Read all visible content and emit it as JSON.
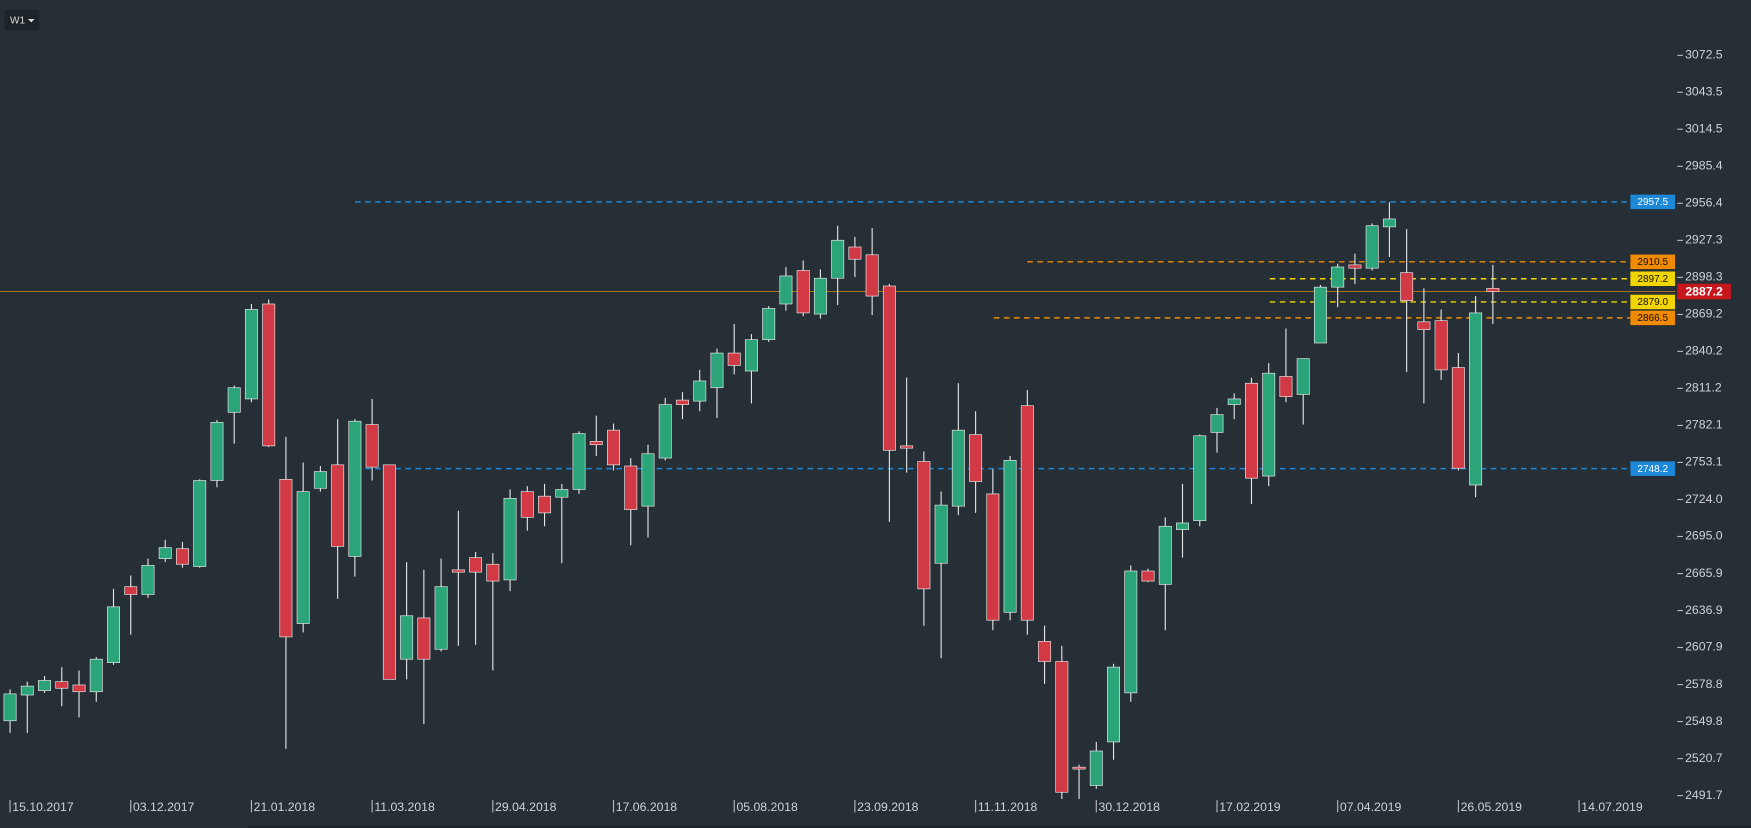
{
  "chart_data": {
    "type": "candlestick",
    "timeframe": "W1",
    "categories": [
      "15.10.2017",
      null,
      null,
      null,
      null,
      null,
      null,
      "03.12.2017",
      null,
      null,
      null,
      null,
      null,
      null,
      "21.01.2018",
      null,
      null,
      null,
      null,
      null,
      null,
      "11.03.2018",
      null,
      null,
      null,
      null,
      null,
      null,
      "29.04.2018",
      null,
      null,
      null,
      null,
      null,
      null,
      "17.06.2018",
      null,
      null,
      null,
      null,
      null,
      null,
      "05.08.2018",
      null,
      null,
      null,
      null,
      null,
      null,
      "23.09.2018",
      null,
      null,
      null,
      null,
      null,
      null,
      "11.11.2018",
      null,
      null,
      null,
      null,
      null,
      null,
      "30.12.2018",
      null,
      null,
      null,
      null,
      null,
      null,
      "17.02.2019",
      null,
      null,
      null,
      null,
      null,
      null,
      "07.04.2019",
      null,
      null,
      null,
      null,
      null,
      null,
      "26.05.2019",
      null,
      null,
      null,
      null,
      null,
      null,
      "14.07.2019"
    ],
    "open": [
      2550.4,
      2570.6,
      2574.1,
      2581.1,
      2578.5,
      2573.2,
      2596.0,
      2655.6,
      2649.5,
      2677.6,
      2685.4,
      2671.4,
      2738.9,
      2792.4,
      2802.9,
      2877.4,
      2739.8,
      2626.7,
      2732.8,
      2751.2,
      2679.3,
      2782.8,
      2751.2,
      2598.7,
      2631.1,
      2606.5,
      2668.8,
      2678.4,
      2673.2,
      2660.9,
      2730.2,
      2726.6,
      2725.8,
      2731.9,
      2769.6,
      2778.4,
      2750.3,
      2718.8,
      2756.5,
      2802.0,
      2801.2,
      2811.7,
      2838.9,
      2824.8,
      2849.4,
      2877.4,
      2903.7,
      2869.5,
      2897.6,
      2922.1,
      2916.0,
      2891.5,
      2766.1,
      2753.8,
      2674.0,
      2718.8,
      2774.9,
      2728.4,
      2635.5,
      2797.6,
      2612.7,
      2596.9,
      2514.0,
      2499.6,
      2533.8,
      2572.3,
      2667.9,
      2657.4,
      2700.4,
      2707.4,
      2776.6,
      2798.5,
      2815.2,
      2742.4,
      2820.5,
      2806.4,
      2846.8,
      2890.6,
      2908.1,
      2905.5,
      2937.9,
      2902.0,
      2863.4,
      2864.3,
      2827.5,
      2735.4,
      2889.7,
      null,
      null,
      null,
      null,
      null
    ],
    "high": [
      2575.0,
      2581.1,
      2585.5,
      2592.5,
      2589.9,
      2600.4,
      2653.9,
      2664.4,
      2677.6,
      2692.4,
      2690.7,
      2739.8,
      2786.3,
      2813.4,
      2877.4,
      2880.9,
      2773.1,
      2753.0,
      2750.3,
      2787.1,
      2787.1,
      2802.9,
      2751.2,
      2674.9,
      2668.8,
      2677.6,
      2715.2,
      2682.8,
      2681.9,
      2731.9,
      2734.5,
      2736.3,
      2736.3,
      2777.5,
      2789.8,
      2783.6,
      2756.5,
      2767.0,
      2803.8,
      2808.2,
      2825.7,
      2842.4,
      2861.7,
      2853.8,
      2875.7,
      2906.4,
      2911.6,
      2904.6,
      2938.8,
      2930.0,
      2937.0,
      2893.2,
      2819.6,
      2761.7,
      2730.2,
      2815.2,
      2793.3,
      2747.7,
      2758.2,
      2809.9,
      2625.0,
      2609.2,
      2516.0,
      2533.8,
      2595.1,
      2672.3,
      2669.7,
      2710.0,
      2736.3,
      2774.9,
      2795.9,
      2807.3,
      2819.6,
      2831.0,
      2858.2,
      2834.5,
      2892.3,
      2909.0,
      2916.9,
      2940.6,
      2957.2,
      2936.2,
      2889.7,
      2873.1,
      2838.9,
      2883.6,
      2908.1,
      null,
      null,
      null,
      null,
      null
    ],
    "low": [
      2540.8,
      2540.8,
      2572.3,
      2561.8,
      2553.0,
      2565.3,
      2594.3,
      2617.9,
      2646.9,
      2674.9,
      2670.5,
      2670.5,
      2733.6,
      2767.8,
      2800.3,
      2765.2,
      2528.5,
      2619.7,
      2730.2,
      2646.0,
      2663.5,
      2738.9,
      2582.9,
      2582.9,
      2547.8,
      2604.8,
      2609.2,
      2610.0,
      2589.9,
      2652.1,
      2699.5,
      2703.0,
      2674.0,
      2728.4,
      2758.2,
      2746.8,
      2688.1,
      2694.2,
      2754.7,
      2787.1,
      2793.3,
      2788.0,
      2822.2,
      2799.4,
      2847.6,
      2872.2,
      2867.8,
      2866.0,
      2876.6,
      2898.5,
      2868.7,
      2706.5,
      2745.1,
      2625.0,
      2599.5,
      2711.7,
      2713.5,
      2621.4,
      2629.3,
      2617.9,
      2579.4,
      2489.0,
      2489.0,
      2497.0,
      2519.8,
      2565.3,
      2659.2,
      2621.4,
      2678.4,
      2703.0,
      2760.8,
      2787.1,
      2720.5,
      2734.5,
      2800.3,
      2782.8,
      2846.8,
      2874.8,
      2893.2,
      2903.7,
      2914.3,
      2823.9,
      2799.4,
      2817.8,
      2746.8,
      2725.8,
      2861.7,
      null,
      null,
      null,
      null,
      null
    ],
    "close": [
      2571.5,
      2577.6,
      2582.0,
      2575.9,
      2573.2,
      2598.7,
      2639.8,
      2649.5,
      2672.3,
      2686.3,
      2673.2,
      2738.9,
      2784.5,
      2811.7,
      2873.1,
      2766.1,
      2616.2,
      2730.2,
      2745.9,
      2687.2,
      2785.4,
      2749.4,
      2582.9,
      2632.8,
      2598.7,
      2655.6,
      2667.0,
      2667.0,
      2660.0,
      2724.9,
      2710.0,
      2713.5,
      2731.9,
      2775.7,
      2767.0,
      2751.2,
      2716.1,
      2759.9,
      2798.5,
      2798.5,
      2817.0,
      2838.9,
      2829.2,
      2849.4,
      2873.9,
      2899.4,
      2870.4,
      2897.6,
      2927.4,
      2912.5,
      2883.6,
      2762.6,
      2764.3,
      2653.9,
      2719.6,
      2778.4,
      2738.1,
      2629.3,
      2754.7,
      2629.3,
      2596.9,
      2494.3,
      2512.5,
      2526.7,
      2592.5,
      2667.9,
      2660.0,
      2703.0,
      2705.6,
      2774.0,
      2790.6,
      2802.9,
      2740.7,
      2823.1,
      2804.7,
      2834.5,
      2890.6,
      2906.4,
      2905.5,
      2938.8,
      2944.1,
      2880.0,
      2857.3,
      2825.7,
      2748.6,
      2870.4,
      2887.2,
      null,
      null,
      null,
      null,
      null
    ],
    "up_color": "#2ba47a",
    "down_color": "#d13a45",
    "wick_color": "#e6e6e6",
    "ylim": [
      2491.7,
      3072.5
    ],
    "yticks": [
      2491.7,
      2520.7,
      2549.8,
      2578.8,
      2607.9,
      2636.9,
      {
        "value": 2665.9,
        "label": "2665.9"
      },
      {
        "value": 2695,
        "label": "2695.0"
      },
      {
        "value": 2724,
        "label": "2724.0"
      },
      2753.1,
      2782.1,
      2811.2,
      2840.2,
      2869.2,
      2898.3,
      2927.3,
      2956.4,
      2985.4,
      3014.5,
      3043.5,
      3072.5
    ],
    "levels": [
      {
        "value": 2957.5,
        "color": "#1e88d8"
      },
      {
        "value": 2910.5,
        "color": "#f08a00"
      },
      {
        "value": 2897.2,
        "color": "#f2d400"
      },
      {
        "value": 2879,
        "label": "2879.0",
        "color": "#f2d400"
      },
      {
        "value": 2866.5,
        "color": "#f08a00"
      },
      {
        "value": 2748.2,
        "color": "#1e88d8"
      }
    ],
    "current_price": 2887.2,
    "current_color": "#c8161d"
  }
}
